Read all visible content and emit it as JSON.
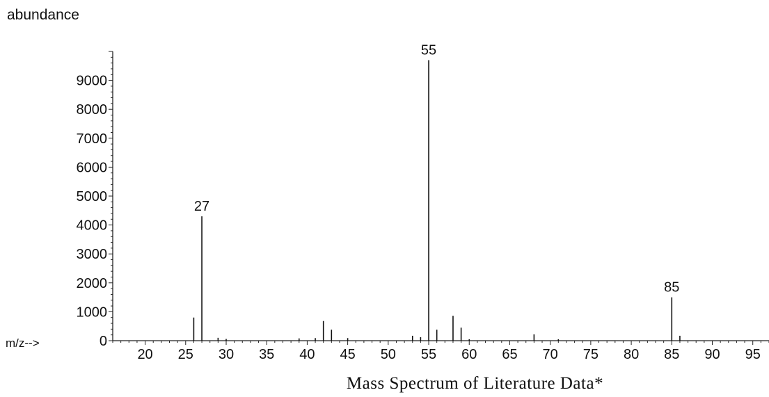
{
  "chart_data": {
    "type": "bar",
    "title": "",
    "caption": "Mass Spectrum of Literature Data*",
    "ylabel": "abundance",
    "xlabel": "m/z-->",
    "xlim": [
      16,
      97
    ],
    "ylim": [
      0,
      10000
    ],
    "xticks": [
      20,
      25,
      30,
      35,
      40,
      45,
      50,
      55,
      60,
      65,
      70,
      75,
      80,
      85,
      90,
      95
    ],
    "yticks": [
      0,
      1000,
      2000,
      3000,
      4000,
      5000,
      6000,
      7000,
      8000,
      9000
    ],
    "grid": false,
    "peaks": [
      {
        "mz": 26,
        "abundance": 800
      },
      {
        "mz": 27,
        "abundance": 4300,
        "label": "27"
      },
      {
        "mz": 29,
        "abundance": 100
      },
      {
        "mz": 30,
        "abundance": 60
      },
      {
        "mz": 39,
        "abundance": 80
      },
      {
        "mz": 41,
        "abundance": 90
      },
      {
        "mz": 42,
        "abundance": 680
      },
      {
        "mz": 43,
        "abundance": 380
      },
      {
        "mz": 45,
        "abundance": 90
      },
      {
        "mz": 53,
        "abundance": 170
      },
      {
        "mz": 54,
        "abundance": 120
      },
      {
        "mz": 55,
        "abundance": 9700,
        "label": "55"
      },
      {
        "mz": 56,
        "abundance": 380
      },
      {
        "mz": 58,
        "abundance": 860
      },
      {
        "mz": 59,
        "abundance": 450
      },
      {
        "mz": 60,
        "abundance": 50
      },
      {
        "mz": 68,
        "abundance": 220
      },
      {
        "mz": 71,
        "abundance": 50
      },
      {
        "mz": 85,
        "abundance": 1500,
        "label": "85"
      },
      {
        "mz": 86,
        "abundance": 170
      }
    ]
  }
}
